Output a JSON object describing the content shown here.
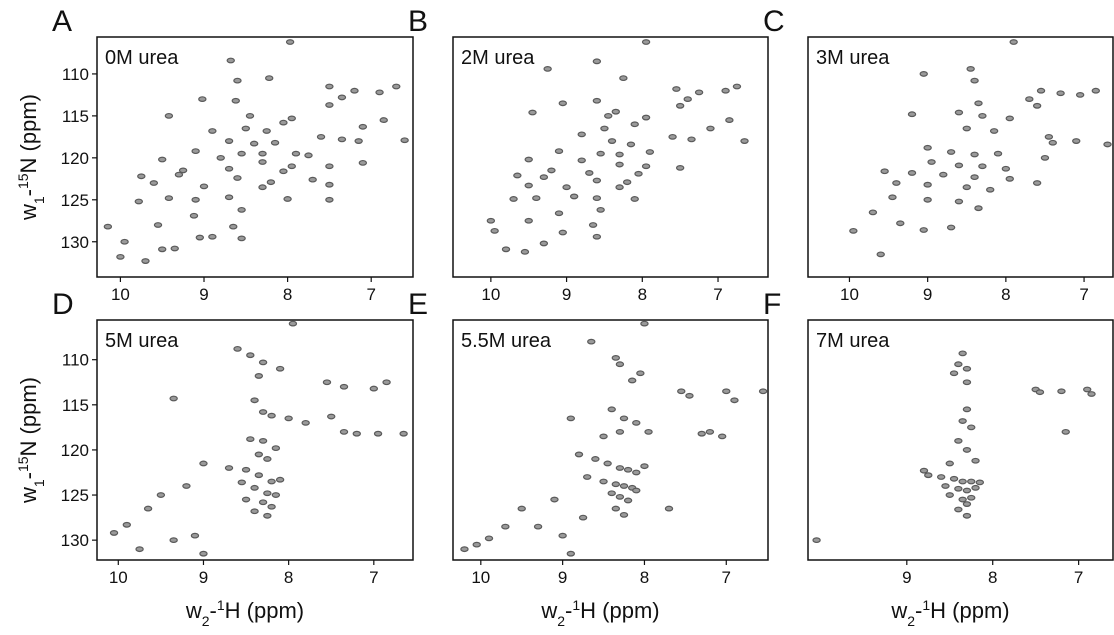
{
  "chart_data": [
    {
      "type": "scatter",
      "panel_label": "A",
      "title": "0M urea",
      "color": "#5a5a5a",
      "xlim": [
        10.28,
        6.5
      ],
      "ylim": [
        134.2,
        105.6
      ],
      "xticks": [
        10,
        9,
        8,
        7
      ],
      "yticks": [
        110,
        115,
        120,
        125,
        130
      ],
      "ylabel_parts": [
        "w",
        "1",
        "-",
        "15",
        "N (ppm)"
      ],
      "x": [
        7.97,
        8.68,
        8.22,
        8.6,
        7.5,
        7.2,
        6.9,
        6.7,
        7.35,
        9.02,
        8.62,
        9.42,
        8.45,
        7.95,
        8.05,
        8.5,
        8.9,
        7.5,
        7.1,
        6.85,
        8.25,
        8.7,
        8.4,
        8.15,
        7.6,
        7.35,
        7.15,
        6.6,
        9.1,
        8.55,
        8.3,
        7.9,
        7.75,
        9.5,
        8.8,
        8.3,
        7.95,
        7.5,
        7.1,
        9.25,
        8.7,
        8.05,
        9.75,
        9.3,
        8.6,
        8.2,
        7.7,
        9.6,
        9,
        8.3,
        7.5,
        9.42,
        9.1,
        8.7,
        8.0,
        7.5,
        9.78,
        9.12,
        8.55,
        9.55,
        8.65,
        10.15,
        9.95,
        9.05,
        8.9,
        8.55,
        9.35,
        9.5,
        10.0,
        9.7
      ],
      "values": [
        106.2,
        108.4,
        110.5,
        110.8,
        111.5,
        112,
        112.2,
        111.5,
        112.8,
        113,
        113.2,
        115,
        115,
        115.3,
        115.8,
        116.5,
        116.8,
        113.7,
        116.3,
        115.5,
        116.8,
        118,
        118.3,
        118.2,
        117.5,
        117.8,
        118,
        117.9,
        119.2,
        119.5,
        119.5,
        119.5,
        119.7,
        120.2,
        120,
        120.5,
        121,
        121,
        120.6,
        121.5,
        121.3,
        121.6,
        122.2,
        122,
        122.4,
        122.9,
        122.6,
        123,
        123.4,
        123.5,
        123.2,
        124.8,
        125,
        124.7,
        124.9,
        125,
        125.2,
        126.9,
        126.2,
        128,
        128.2,
        128.2,
        130,
        129.5,
        129.4,
        129.6,
        130.8,
        130.9,
        131.8,
        132.3
      ]
    },
    {
      "type": "scatter",
      "panel_label": "B",
      "title": "2M urea",
      "color": "#5a5a5a",
      "xlim": [
        10.5,
        6.34
      ],
      "ylim": [
        134.2,
        105.6
      ],
      "xticks": [
        10,
        9,
        8,
        7
      ],
      "x": [
        7.95,
        8.6,
        9.25,
        8.25,
        7.55,
        7.25,
        6.9,
        6.75,
        7.4,
        9.05,
        8.6,
        8.35,
        9.45,
        8.45,
        7.95,
        8.1,
        8.5,
        7.5,
        7.1,
        6.85,
        8.8,
        8.4,
        8.15,
        7.6,
        7.35,
        6.65,
        9.1,
        8.55,
        8.3,
        7.9,
        9.5,
        8.8,
        8.3,
        7.95,
        7.5,
        9.2,
        8.7,
        8.05,
        9.65,
        9.3,
        8.6,
        8.2,
        9.5,
        9.0,
        8.3,
        9.4,
        8.9,
        8.6,
        8.1,
        9.7,
        9.1,
        8.55,
        9.5,
        8.65,
        10.0,
        9.95,
        9.05,
        8.6,
        9.3,
        9.8,
        9.55
      ],
      "values": [
        106.2,
        108.5,
        109.4,
        110.5,
        111.8,
        112.2,
        112,
        111.5,
        113,
        113.5,
        113.2,
        114.5,
        114.6,
        115,
        115.2,
        116,
        116.5,
        113.8,
        116.5,
        115.5,
        117.2,
        118,
        118.4,
        117.5,
        117.8,
        118,
        119.2,
        119.5,
        119.6,
        119.3,
        120.2,
        120.3,
        120.8,
        121,
        121.2,
        121.5,
        121.8,
        121.9,
        122.1,
        122.3,
        122.7,
        122.9,
        123.3,
        123.5,
        123.5,
        124.8,
        124.6,
        124.8,
        124.9,
        124.9,
        126.6,
        126.2,
        127.5,
        128,
        127.5,
        128.7,
        128.9,
        129.4,
        130.2,
        130.9,
        131.2
      ]
    },
    {
      "type": "scatter",
      "panel_label": "C",
      "title": "3M urea",
      "color": "#5a5a5a",
      "xlim": [
        10.53,
        6.63
      ],
      "ylim": [
        134.2,
        105.6
      ],
      "xticks": [
        10,
        9,
        8,
        7
      ],
      "x": [
        7.9,
        8.45,
        9.05,
        8.4,
        7.55,
        7.3,
        7.05,
        6.85,
        7.7,
        8.35,
        9.2,
        8.6,
        8.3,
        7.95,
        7.6,
        8.5,
        8.15,
        7.45,
        7.1,
        6.7,
        9.0,
        8.7,
        8.4,
        8.1,
        7.5,
        7.4,
        8.95,
        8.6,
        8.3,
        8.0,
        9.55,
        9.2,
        8.8,
        8.4,
        7.95,
        7.6,
        9.4,
        9.0,
        8.5,
        8.2,
        9.45,
        9.0,
        8.6,
        8.35,
        9.7,
        9.35,
        9.05,
        8.7,
        9.95,
        9.6
      ],
      "values": [
        106.2,
        109.4,
        110,
        110.8,
        112,
        112.3,
        112.5,
        112,
        113,
        113.5,
        114.8,
        114.6,
        115,
        115.3,
        113.8,
        116.5,
        116.8,
        117.5,
        118,
        118.4,
        118.8,
        119.3,
        119.6,
        119.5,
        120,
        118.2,
        120.5,
        120.9,
        121,
        121.3,
        121.6,
        121.8,
        122,
        122.3,
        122.5,
        123,
        123,
        123.2,
        123.5,
        123.8,
        124.7,
        125,
        125.2,
        126,
        126.5,
        127.8,
        128.6,
        128.3,
        128.7,
        131.5
      ]
    },
    {
      "type": "scatter",
      "panel_label": "D",
      "title": "5M urea",
      "color": "#5a5a5a",
      "xlim": [
        10.25,
        6.54
      ],
      "ylim": [
        132.2,
        105.6
      ],
      "xticks": [
        10,
        9,
        8,
        7
      ],
      "yticks": [
        110,
        115,
        120,
        125,
        130
      ],
      "ylabel_parts": [
        "w",
        "1",
        "-",
        "15",
        "N (ppm)"
      ],
      "xlabel_parts": [
        "w",
        "2",
        "-",
        "1",
        "H (ppm)"
      ],
      "x": [
        7.95,
        8.6,
        8.45,
        8.3,
        8.1,
        8.35,
        7.55,
        7.35,
        7.0,
        6.85,
        9.35,
        8.4,
        8.3,
        8.2,
        8.0,
        7.8,
        7.5,
        7.35,
        7.2,
        6.95,
        6.65,
        8.45,
        8.3,
        8.15,
        8.35,
        8.25,
        9.0,
        8.7,
        8.5,
        8.35,
        8.2,
        8.1,
        9.2,
        8.55,
        8.4,
        8.25,
        8.15,
        9.5,
        8.5,
        8.3,
        8.2,
        8.4,
        8.25,
        9.65,
        9.1,
        9.35,
        9.9,
        10.05,
        9.75,
        9.0
      ],
      "values": [
        106,
        108.8,
        109.5,
        110.3,
        111,
        111.8,
        112.5,
        113,
        113.2,
        112.5,
        114.3,
        114.5,
        115.8,
        116.2,
        116.5,
        117,
        116.3,
        118,
        118.2,
        118.2,
        118.2,
        118.8,
        119,
        119.8,
        120.5,
        121,
        121.5,
        122,
        122.2,
        122.8,
        123.5,
        123.3,
        124,
        123.6,
        124.2,
        124.8,
        125,
        125,
        125.5,
        125.8,
        126.3,
        126.8,
        127.3,
        126.5,
        129.5,
        130,
        128.3,
        129.2,
        131,
        131.5
      ]
    },
    {
      "type": "scatter",
      "panel_label": "E",
      "title": "5.5M urea",
      "color": "#5a5a5a",
      "xlim": [
        10.34,
        6.49
      ],
      "ylim": [
        132.2,
        105.6
      ],
      "xticks": [
        10,
        9,
        8,
        7
      ],
      "xlabel_parts": [
        "w",
        "2",
        "-",
        "1",
        "H (ppm)"
      ],
      "x": [
        8.0,
        8.65,
        8.35,
        8.3,
        8.05,
        8.15,
        7.55,
        7.45,
        7.0,
        6.9,
        6.55,
        8.4,
        8.25,
        8.1,
        8.3,
        8.5,
        7.95,
        7.3,
        7.2,
        7.05,
        8.8,
        8.6,
        8.45,
        8.3,
        8.2,
        8.1,
        8.0,
        8.7,
        8.5,
        8.35,
        8.25,
        8.15,
        8.4,
        8.3,
        8.2,
        8.35,
        8.25,
        8.1,
        9.1,
        9.5,
        9.7,
        9.9,
        10.05,
        10.2,
        9.3,
        8.75,
        9.0,
        8.9,
        7.7,
        8.9
      ],
      "values": [
        106,
        108,
        109.8,
        110.5,
        111.5,
        112.3,
        113.5,
        114,
        113.5,
        114.5,
        113.5,
        115.5,
        116.5,
        117,
        118,
        118.5,
        118,
        118.2,
        118,
        118.5,
        120.5,
        121,
        121.5,
        122,
        122.2,
        122.5,
        121.8,
        123,
        123.5,
        123.8,
        124,
        124.2,
        124.8,
        125.2,
        125.6,
        126.5,
        127.2,
        124.5,
        125.5,
        126.5,
        128.5,
        129.8,
        130.5,
        131,
        128.5,
        127.5,
        129.5,
        131.5,
        126.5,
        116.5
      ]
    },
    {
      "type": "scatter",
      "panel_label": "F",
      "title": "7M urea",
      "color": "#5a5a5a",
      "xlim": [
        10.15,
        6.6
      ],
      "ylim": [
        132.2,
        105.6
      ],
      "xticks": [
        9,
        8,
        7
      ],
      "xlabel_parts": [
        "w",
        "2",
        "-",
        "1",
        "H (ppm)"
      ],
      "x": [
        8.35,
        8.4,
        8.3,
        8.45,
        8.3,
        7.5,
        7.45,
        7.2,
        6.9,
        6.85,
        8.3,
        8.35,
        8.25,
        8.4,
        8.3,
        8.2,
        8.5,
        8.8,
        8.75,
        8.6,
        8.45,
        8.35,
        8.25,
        8.15,
        8.55,
        8.4,
        8.3,
        8.2,
        8.5,
        8.35,
        8.25,
        8.3,
        8.4,
        8.3,
        10.05,
        7.15
      ],
      "values": [
        109.3,
        110.5,
        111,
        111.5,
        112.5,
        113.3,
        113.6,
        113.5,
        113.3,
        113.8,
        115.5,
        116.8,
        117.5,
        119,
        120,
        121.2,
        121.5,
        122.3,
        122.8,
        123,
        123.2,
        123.5,
        123.5,
        123.6,
        124,
        124.3,
        124.5,
        124.2,
        125,
        125.5,
        125.3,
        126,
        126.6,
        127.3,
        130,
        118
      ]
    }
  ]
}
